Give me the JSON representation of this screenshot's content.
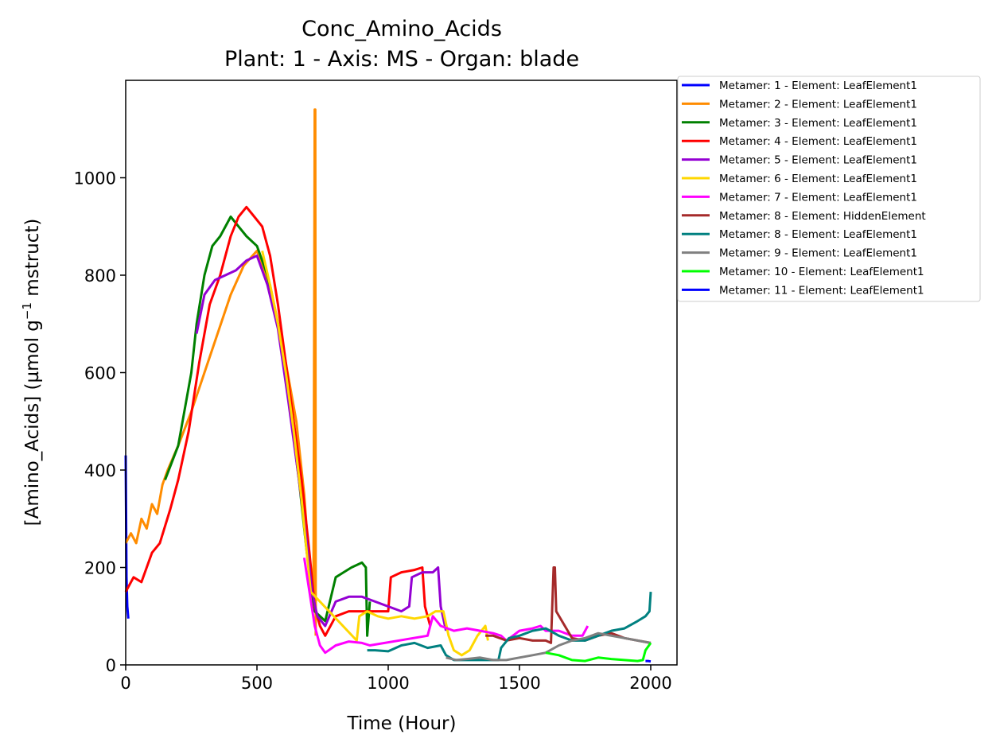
{
  "chart_data": {
    "type": "line",
    "title": "Conc_Amino_Acids",
    "subtitle": "Plant: 1 - Axis: MS - Organ: blade",
    "xlabel": "Time (Hour)",
    "ylabel_main": "[Amino_Acids] (µmol g",
    "ylabel_sup": "−1",
    "ylabel_end": " mstruct)",
    "xlim": [
      0,
      2100
    ],
    "ylim": [
      0,
      1200
    ],
    "xticks": [
      0,
      500,
      1000,
      1500,
      2000
    ],
    "yticks": [
      0,
      200,
      400,
      600,
      800,
      1000
    ],
    "grid": false,
    "legend_position": "outside-right",
    "series": [
      {
        "name": "Metamer: 1 - Element: LeafElement1",
        "color": "#0000ff",
        "points": [
          [
            0,
            430
          ],
          [
            3,
            180
          ],
          [
            6,
            120
          ],
          [
            10,
            95
          ]
        ]
      },
      {
        "name": "Metamer: 2 - Element: LeafElement1",
        "color": "#ff8c00",
        "points": [
          [
            0,
            250
          ],
          [
            20,
            270
          ],
          [
            40,
            250
          ],
          [
            60,
            300
          ],
          [
            80,
            280
          ],
          [
            100,
            330
          ],
          [
            120,
            310
          ],
          [
            140,
            370
          ],
          [
            160,
            400
          ],
          [
            200,
            450
          ],
          [
            250,
            520
          ],
          [
            300,
            600
          ],
          [
            350,
            680
          ],
          [
            400,
            760
          ],
          [
            450,
            820
          ],
          [
            500,
            850
          ],
          [
            550,
            780
          ],
          [
            600,
            650
          ],
          [
            650,
            500
          ],
          [
            680,
            350
          ],
          [
            700,
            200
          ],
          [
            715,
            120
          ],
          [
            720,
            1140
          ],
          [
            722,
            1140
          ],
          [
            724,
            60
          ]
        ]
      },
      {
        "name": "Metamer: 3 - Element: LeafElement1",
        "color": "#008000",
        "points": [
          [
            150,
            380
          ],
          [
            200,
            450
          ],
          [
            250,
            600
          ],
          [
            270,
            700
          ],
          [
            300,
            800
          ],
          [
            330,
            860
          ],
          [
            360,
            880
          ],
          [
            400,
            920
          ],
          [
            430,
            900
          ],
          [
            460,
            880
          ],
          [
            500,
            860
          ],
          [
            540,
            800
          ],
          [
            580,
            700
          ],
          [
            620,
            550
          ],
          [
            660,
            380
          ],
          [
            690,
            230
          ],
          [
            720,
            110
          ],
          [
            760,
            90
          ],
          [
            800,
            180
          ],
          [
            830,
            190
          ],
          [
            860,
            200
          ],
          [
            900,
            210
          ],
          [
            915,
            200
          ],
          [
            920,
            60
          ],
          [
            930,
            130
          ]
        ]
      },
      {
        "name": "Metamer: 4 - Element: LeafElement1",
        "color": "#ff0000",
        "points": [
          [
            0,
            150
          ],
          [
            30,
            180
          ],
          [
            60,
            170
          ],
          [
            100,
            230
          ],
          [
            130,
            250
          ],
          [
            170,
            320
          ],
          [
            200,
            380
          ],
          [
            240,
            480
          ],
          [
            280,
            620
          ],
          [
            320,
            740
          ],
          [
            360,
            800
          ],
          [
            400,
            880
          ],
          [
            430,
            920
          ],
          [
            460,
            940
          ],
          [
            490,
            920
          ],
          [
            520,
            900
          ],
          [
            550,
            840
          ],
          [
            580,
            740
          ],
          [
            610,
            620
          ],
          [
            640,
            500
          ],
          [
            670,
            380
          ],
          [
            700,
            230
          ],
          [
            720,
            120
          ],
          [
            740,
            80
          ],
          [
            760,
            60
          ],
          [
            800,
            100
          ],
          [
            850,
            110
          ],
          [
            900,
            110
          ],
          [
            950,
            110
          ],
          [
            1000,
            110
          ],
          [
            1010,
            180
          ],
          [
            1050,
            190
          ],
          [
            1100,
            195
          ],
          [
            1130,
            200
          ],
          [
            1140,
            120
          ],
          [
            1160,
            80
          ]
        ]
      },
      {
        "name": "Metamer: 5 - Element: LeafElement1",
        "color": "#9400d3",
        "points": [
          [
            270,
            680
          ],
          [
            300,
            760
          ],
          [
            340,
            790
          ],
          [
            380,
            800
          ],
          [
            420,
            810
          ],
          [
            460,
            830
          ],
          [
            500,
            840
          ],
          [
            540,
            780
          ],
          [
            580,
            690
          ],
          [
            620,
            540
          ],
          [
            660,
            380
          ],
          [
            690,
            250
          ],
          [
            710,
            150
          ],
          [
            730,
            100
          ],
          [
            760,
            80
          ],
          [
            800,
            130
          ],
          [
            850,
            140
          ],
          [
            900,
            140
          ],
          [
            950,
            130
          ],
          [
            1000,
            120
          ],
          [
            1050,
            110
          ],
          [
            1080,
            120
          ],
          [
            1090,
            180
          ],
          [
            1130,
            190
          ],
          [
            1170,
            190
          ],
          [
            1190,
            200
          ],
          [
            1200,
            120
          ],
          [
            1220,
            70
          ]
        ]
      },
      {
        "name": "Metamer: 6 - Element: LeafElement1",
        "color": "#ffd700",
        "points": [
          [
            520,
            850
          ],
          [
            550,
            780
          ],
          [
            580,
            700
          ],
          [
            610,
            600
          ],
          [
            640,
            480
          ],
          [
            670,
            340
          ],
          [
            690,
            230
          ],
          [
            705,
            150
          ],
          [
            880,
            50
          ],
          [
            890,
            100
          ],
          [
            920,
            110
          ],
          [
            960,
            100
          ],
          [
            1000,
            95
          ],
          [
            1050,
            100
          ],
          [
            1100,
            95
          ],
          [
            1150,
            100
          ],
          [
            1180,
            110
          ],
          [
            1210,
            110
          ],
          [
            1230,
            60
          ],
          [
            1250,
            30
          ],
          [
            1280,
            20
          ],
          [
            1310,
            30
          ],
          [
            1340,
            60
          ],
          [
            1370,
            80
          ],
          [
            1380,
            50
          ]
        ]
      },
      {
        "name": "Metamer: 7 - Element: LeafElement1",
        "color": "#ff00ff",
        "points": [
          [
            680,
            220
          ],
          [
            700,
            150
          ],
          [
            720,
            80
          ],
          [
            740,
            40
          ],
          [
            760,
            25
          ],
          [
            800,
            40
          ],
          [
            850,
            48
          ],
          [
            900,
            45
          ],
          [
            930,
            40
          ],
          [
            1150,
            60
          ],
          [
            1170,
            100
          ],
          [
            1200,
            80
          ],
          [
            1250,
            70
          ],
          [
            1300,
            75
          ],
          [
            1350,
            70
          ],
          [
            1400,
            65
          ],
          [
            1430,
            60
          ],
          [
            1450,
            50
          ],
          [
            1500,
            70
          ],
          [
            1550,
            75
          ],
          [
            1580,
            80
          ],
          [
            1600,
            70
          ],
          [
            1650,
            70
          ],
          [
            1700,
            60
          ],
          [
            1740,
            60
          ],
          [
            1760,
            80
          ]
        ]
      },
      {
        "name": "Metamer: 8 - Element: HiddenElement",
        "color": "#a52a2a",
        "points": [
          [
            1370,
            60
          ],
          [
            1400,
            60
          ],
          [
            1450,
            50
          ],
          [
            1500,
            55
          ],
          [
            1550,
            50
          ],
          [
            1600,
            50
          ],
          [
            1620,
            45
          ],
          [
            1630,
            200
          ],
          [
            1635,
            200
          ],
          [
            1640,
            110
          ],
          [
            1700,
            55
          ],
          [
            1750,
            50
          ],
          [
            1800,
            60
          ],
          [
            1850,
            65
          ],
          [
            1900,
            55
          ],
          [
            1950,
            50
          ],
          [
            2000,
            45
          ]
        ]
      },
      {
        "name": "Metamer: 8 - Element: LeafElement1",
        "color": "#008080",
        "points": [
          [
            920,
            30
          ],
          [
            950,
            30
          ],
          [
            1000,
            28
          ],
          [
            1050,
            40
          ],
          [
            1100,
            45
          ],
          [
            1150,
            35
          ],
          [
            1200,
            40
          ],
          [
            1220,
            20
          ],
          [
            1250,
            10
          ],
          [
            1420,
            10
          ],
          [
            1430,
            35
          ],
          [
            1460,
            55
          ],
          [
            1500,
            60
          ],
          [
            1550,
            70
          ],
          [
            1600,
            75
          ],
          [
            1650,
            60
          ],
          [
            1700,
            50
          ],
          [
            1750,
            50
          ],
          [
            1800,
            60
          ],
          [
            1850,
            70
          ],
          [
            1900,
            75
          ],
          [
            1950,
            90
          ],
          [
            1980,
            100
          ],
          [
            1995,
            110
          ],
          [
            2000,
            150
          ]
        ]
      },
      {
        "name": "Metamer: 9 - Element: LeafElement1",
        "color": "#808080",
        "points": [
          [
            1220,
            15
          ],
          [
            1260,
            10
          ],
          [
            1300,
            12
          ],
          [
            1350,
            15
          ],
          [
            1400,
            10
          ],
          [
            1450,
            10
          ],
          [
            1500,
            15
          ],
          [
            1550,
            20
          ],
          [
            1600,
            25
          ],
          [
            1650,
            40
          ],
          [
            1700,
            50
          ],
          [
            1750,
            55
          ],
          [
            1800,
            65
          ],
          [
            1850,
            60
          ],
          [
            1900,
            55
          ],
          [
            1950,
            50
          ],
          [
            2000,
            45
          ]
        ]
      },
      {
        "name": "Metamer: 10 - Element: LeafElement1",
        "color": "#00ff00",
        "points": [
          [
            1600,
            25
          ],
          [
            1650,
            20
          ],
          [
            1700,
            10
          ],
          [
            1750,
            8
          ],
          [
            1800,
            15
          ],
          [
            1850,
            12
          ],
          [
            1900,
            10
          ],
          [
            1950,
            8
          ],
          [
            1970,
            10
          ],
          [
            1980,
            30
          ],
          [
            2000,
            45
          ]
        ]
      },
      {
        "name": "Metamer: 11 - Element: LeafElement1",
        "color": "#0000ff",
        "points": [
          [
            1980,
            8
          ],
          [
            1990,
            8
          ],
          [
            2000,
            7
          ]
        ]
      }
    ]
  }
}
